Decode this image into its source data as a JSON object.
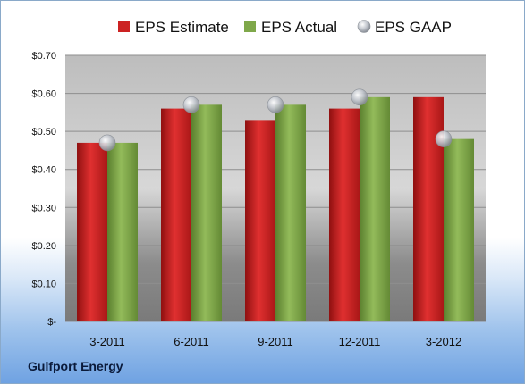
{
  "company_name": "Gulfport Energy",
  "chart_data": {
    "type": "bar",
    "categories": [
      "3-2011",
      "6-2011",
      "9-2011",
      "12-2011",
      "3-2012"
    ],
    "series": [
      {
        "name": "EPS Estimate",
        "values": [
          0.47,
          0.56,
          0.53,
          0.56,
          0.59
        ],
        "color": "#cc2222"
      },
      {
        "name": "EPS Actual",
        "values": [
          0.47,
          0.57,
          0.57,
          0.59,
          0.48
        ],
        "color": "#7fa84a"
      },
      {
        "name": "EPS GAAP",
        "values": [
          0.47,
          0.57,
          0.57,
          0.59,
          0.48
        ],
        "color": "#b8bcc2",
        "marker": "sphere"
      }
    ],
    "yticks": [
      "$-",
      "$0.10",
      "$0.20",
      "$0.30",
      "$0.40",
      "$0.50",
      "$0.60",
      "$0.70"
    ],
    "ylim": [
      0,
      0.7
    ],
    "legend_position": "top",
    "grid": true
  }
}
